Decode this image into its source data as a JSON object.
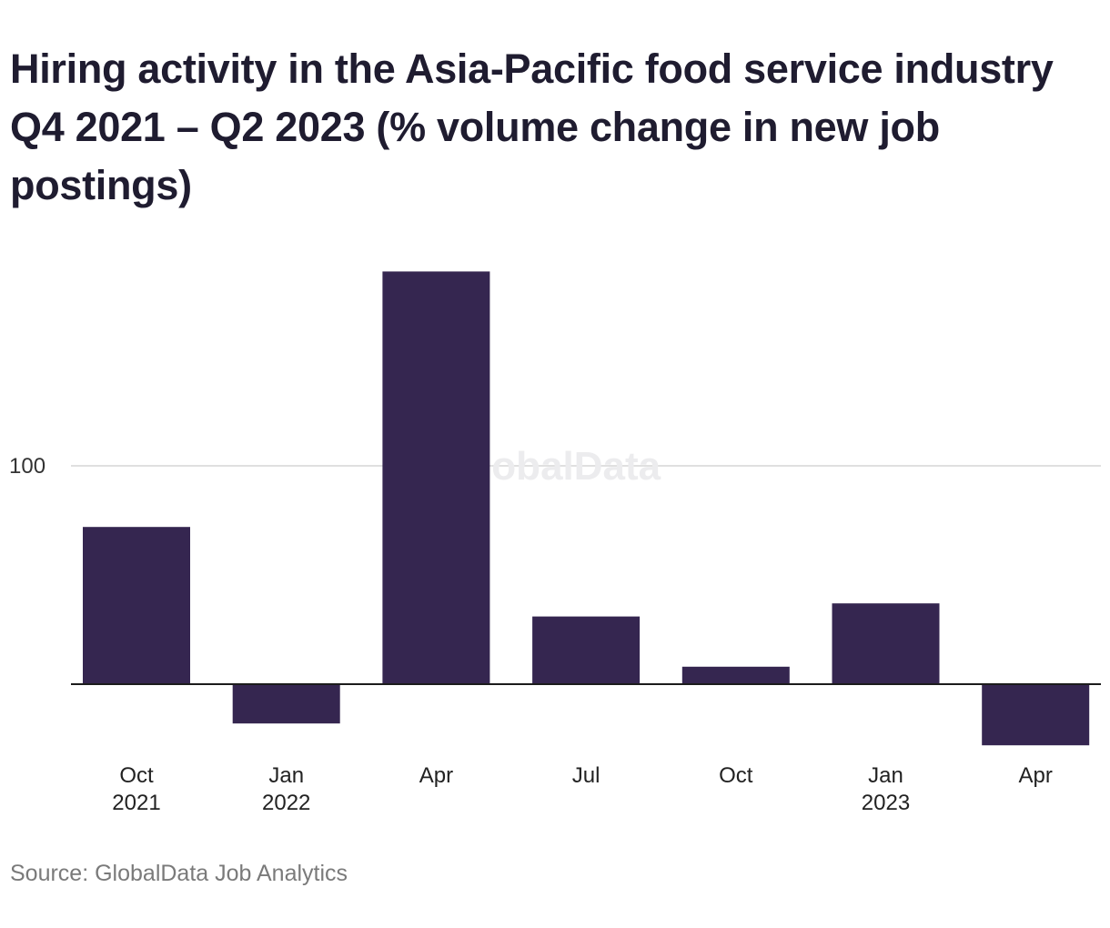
{
  "title": "Hiring activity in the Asia-Pacific food service industry Q4 2021 – Q2 2023 (% volume change in new job postings)",
  "source": "Source: GlobalData Job Analytics",
  "watermark": "GlobalData",
  "colors": {
    "bar": "#352650",
    "gridline": "#d6d6d6",
    "baseline": "#1c1c1c",
    "watermark": "#ececee",
    "source": "#7a7a7a"
  },
  "chart_data": {
    "type": "bar",
    "categories": [
      "Oct 2021",
      "Jan 2022",
      "Apr",
      "Jul",
      "Oct",
      "Jan 2023",
      "Apr"
    ],
    "x_tick_labels": [
      [
        "Oct",
        "2021"
      ],
      [
        "Jan",
        "2022"
      ],
      [
        "Apr"
      ],
      [
        "Jul"
      ],
      [
        "Oct"
      ],
      [
        "Jan",
        "2023"
      ],
      [
        "Apr"
      ]
    ],
    "values": [
      72,
      -18,
      189,
      31,
      8,
      37,
      -28
    ],
    "y_ticks": [
      100
    ],
    "ylim": [
      -35,
      200
    ],
    "grid": true,
    "title": "Hiring activity in the Asia-Pacific food service industry Q4 2021 – Q2 2023 (% volume change in new job postings)",
    "xlabel": "",
    "ylabel": ""
  }
}
